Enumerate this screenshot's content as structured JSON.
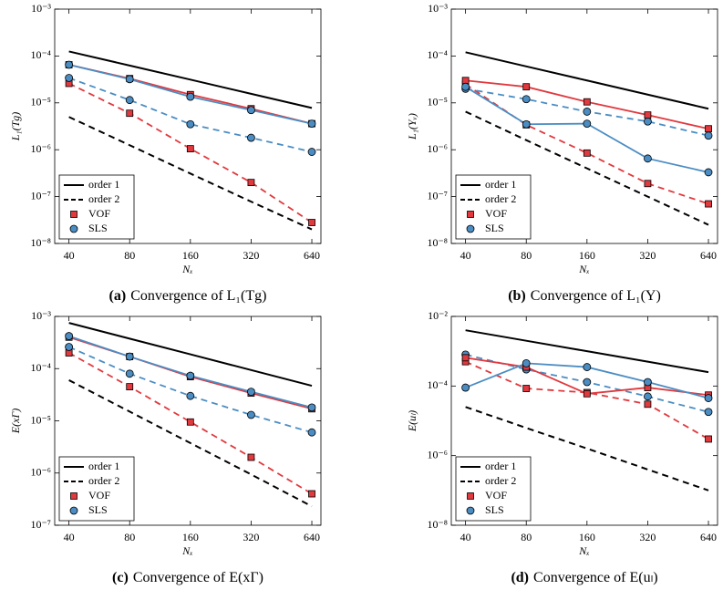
{
  "chart_data": [
    {
      "type": "line",
      "caption_label": "(a)",
      "caption": "Convergence of L₁(Tg)",
      "xlabel": "Nₓ",
      "ylabel": "L₁(Tg)",
      "xlog": true,
      "ylog": true,
      "legend_loc": "lower left",
      "x": [
        40,
        80,
        160,
        320,
        640
      ],
      "xlim": [
        34,
        710
      ],
      "xticks": [
        40,
        80,
        160,
        320,
        640
      ],
      "ylim": [
        1e-08,
        0.001
      ],
      "yticks": [
        {
          "value": 1e-08,
          "label": "10⁻⁸"
        },
        {
          "value": 1e-07,
          "label": "10⁻⁷"
        },
        {
          "value": 1e-06,
          "label": "10⁻⁶"
        },
        {
          "value": 1e-05,
          "label": "10⁻⁵"
        },
        {
          "value": 0.0001,
          "label": "10⁻⁴"
        },
        {
          "value": 0.001,
          "label": "10⁻³"
        }
      ],
      "series": [
        {
          "name": "order 1",
          "color": "#000000",
          "dash": false,
          "marker": "none",
          "values": [
            0.000125,
            6.25e-05,
            3.13e-05,
            1.56e-05,
            7.8e-06
          ]
        },
        {
          "name": "order 2",
          "color": "#000000",
          "dash": true,
          "marker": "none",
          "values": [
            5e-06,
            1.25e-06,
            3.1e-07,
            7.8e-08,
            2e-08
          ]
        },
        {
          "name": "VOF",
          "color": "#e0393e",
          "dash": true,
          "marker": "square",
          "values": [
            2.6e-05,
            6e-06,
            1.05e-06,
            2e-07,
            2.8e-08
          ]
        },
        {
          "name": "SLS",
          "color": "#4b8dc3",
          "dash": true,
          "marker": "circle",
          "values": [
            3.4e-05,
            1.15e-05,
            3.5e-06,
            1.8e-06,
            9e-07
          ]
        },
        {
          "name": "VOF",
          "color": "#e0393e",
          "dash": false,
          "marker": "square",
          "values": [
            6.5e-05,
            3.3e-05,
            1.5e-05,
            7.5e-06,
            3.6e-06
          ]
        },
        {
          "name": "SLS",
          "color": "#4b8dc3",
          "dash": false,
          "marker": "circle",
          "values": [
            6.5e-05,
            3.2e-05,
            1.35e-05,
            7e-06,
            3.6e-06
          ]
        }
      ]
    },
    {
      "type": "line",
      "caption_label": "(b)",
      "caption": "Convergence of L₁(Y)",
      "xlabel": "Nₓ",
      "ylabel": "L₁(Yᵥ)",
      "xlog": true,
      "ylog": true,
      "legend_loc": "lower left",
      "x": [
        40,
        80,
        160,
        320,
        640
      ],
      "xlim": [
        34,
        710
      ],
      "xticks": [
        40,
        80,
        160,
        320,
        640
      ],
      "ylim": [
        1e-08,
        0.001
      ],
      "yticks": [
        {
          "value": 1e-08,
          "label": "10⁻⁸"
        },
        {
          "value": 1e-07,
          "label": "10⁻⁷"
        },
        {
          "value": 1e-06,
          "label": "10⁻⁶"
        },
        {
          "value": 1e-05,
          "label": "10⁻⁵"
        },
        {
          "value": 0.0001,
          "label": "10⁻⁴"
        },
        {
          "value": 0.001,
          "label": "10⁻³"
        }
      ],
      "series": [
        {
          "name": "order 1",
          "color": "#000000",
          "dash": false,
          "marker": "none",
          "values": [
            0.00012,
            6e-05,
            3e-05,
            1.5e-05,
            7.5e-06
          ]
        },
        {
          "name": "order 2",
          "color": "#000000",
          "dash": true,
          "marker": "none",
          "values": [
            6.5e-06,
            1.6e-06,
            4e-07,
            1e-07,
            2.5e-08
          ]
        },
        {
          "name": "VOF",
          "color": "#e0393e",
          "dash": true,
          "marker": "square",
          "values": [
            2.5e-05,
            3.4e-06,
            8.5e-07,
            1.9e-07,
            7e-08
          ]
        },
        {
          "name": "SLS",
          "color": "#4b8dc3",
          "dash": true,
          "marker": "circle",
          "values": [
            2e-05,
            1.2e-05,
            6.5e-06,
            4e-06,
            2e-06
          ]
        },
        {
          "name": "VOF",
          "color": "#e0393e",
          "dash": false,
          "marker": "square",
          "values": [
            3e-05,
            2.2e-05,
            1.05e-05,
            5.5e-06,
            2.8e-06
          ]
        },
        {
          "name": "SLS",
          "color": "#4b8dc3",
          "dash": false,
          "marker": "circle",
          "values": [
            2.2e-05,
            3.5e-06,
            3.6e-06,
            6.5e-07,
            3.3e-07
          ]
        }
      ]
    },
    {
      "type": "line",
      "caption_label": "(c)",
      "caption": "Convergence of E(xΓ)",
      "xlabel": "Nₓ",
      "ylabel": "E(xΓ)",
      "xlog": true,
      "ylog": true,
      "legend_loc": "lower left",
      "x": [
        40,
        80,
        160,
        320,
        640
      ],
      "xlim": [
        34,
        710
      ],
      "xticks": [
        40,
        80,
        160,
        320,
        640
      ],
      "ylim": [
        1e-07,
        0.001
      ],
      "yticks": [
        {
          "value": 1e-07,
          "label": "10⁻⁷"
        },
        {
          "value": 1e-06,
          "label": "10⁻⁶"
        },
        {
          "value": 1e-05,
          "label": "10⁻⁵"
        },
        {
          "value": 0.0001,
          "label": "10⁻⁴"
        },
        {
          "value": 0.001,
          "label": "10⁻³"
        }
      ],
      "series": [
        {
          "name": "order 1",
          "color": "#000000",
          "dash": false,
          "marker": "none",
          "values": [
            0.00075,
            0.000375,
            0.000188,
            9.38e-05,
            4.69e-05
          ]
        },
        {
          "name": "order 2",
          "color": "#000000",
          "dash": true,
          "marker": "none",
          "values": [
            6e-05,
            1.5e-05,
            3.75e-06,
            9.4e-07,
            2.3e-07
          ]
        },
        {
          "name": "VOF",
          "color": "#e0393e",
          "dash": true,
          "marker": "square",
          "values": [
            0.0002,
            4.5e-05,
            9.5e-06,
            2e-06,
            4e-07
          ]
        },
        {
          "name": "SLS",
          "color": "#4b8dc3",
          "dash": true,
          "marker": "circle",
          "values": [
            0.00026,
            8e-05,
            3e-05,
            1.3e-05,
            6e-06
          ]
        },
        {
          "name": "VOF",
          "color": "#e0393e",
          "dash": false,
          "marker": "square",
          "values": [
            0.0004,
            0.00017,
            7e-05,
            3.4e-05,
            1.7e-05
          ]
        },
        {
          "name": "SLS",
          "color": "#4b8dc3",
          "dash": false,
          "marker": "circle",
          "values": [
            0.00042,
            0.00017,
            7.3e-05,
            3.6e-05,
            1.8e-05
          ]
        }
      ]
    },
    {
      "type": "line",
      "caption_label": "(d)",
      "caption": "Convergence of E(uₗ)",
      "xlabel": "Nₓ",
      "ylabel": "E(uₗ)",
      "xlog": true,
      "ylog": true,
      "legend_loc": "lower left",
      "x": [
        40,
        80,
        160,
        320,
        640
      ],
      "xlim": [
        34,
        710
      ],
      "xticks": [
        40,
        80,
        160,
        320,
        640
      ],
      "ylim": [
        1e-08,
        0.01
      ],
      "yticks": [
        {
          "value": 1e-08,
          "label": "10⁻⁸"
        },
        {
          "value": 1e-06,
          "label": "10⁻⁶"
        },
        {
          "value": 0.0001,
          "label": "10⁻⁴"
        },
        {
          "value": 0.01,
          "label": "10⁻²"
        }
      ],
      "series": [
        {
          "name": "order 1",
          "color": "#000000",
          "dash": false,
          "marker": "none",
          "values": [
            0.004,
            0.002,
            0.001,
            0.0005,
            0.00025
          ]
        },
        {
          "name": "order 2",
          "color": "#000000",
          "dash": true,
          "marker": "none",
          "values": [
            2.5e-05,
            6.25e-06,
            1.6e-06,
            4e-07,
            1e-07
          ]
        },
        {
          "name": "VOF",
          "color": "#e0393e",
          "dash": true,
          "marker": "square",
          "values": [
            0.0005,
            8.5e-05,
            6.5e-05,
            3e-05,
            3e-06
          ]
        },
        {
          "name": "SLS",
          "color": "#4b8dc3",
          "dash": true,
          "marker": "circle",
          "values": [
            0.0008,
            0.0003,
            0.00013,
            5e-05,
            1.8e-05
          ]
        },
        {
          "name": "VOF",
          "color": "#e0393e",
          "dash": false,
          "marker": "square",
          "values": [
            0.00065,
            0.00035,
            6e-05,
            9e-05,
            5.5e-05
          ]
        },
        {
          "name": "SLS",
          "color": "#4b8dc3",
          "dash": false,
          "marker": "circle",
          "values": [
            9e-05,
            0.00045,
            0.00035,
            0.00013,
            4.5e-05
          ]
        }
      ]
    }
  ]
}
